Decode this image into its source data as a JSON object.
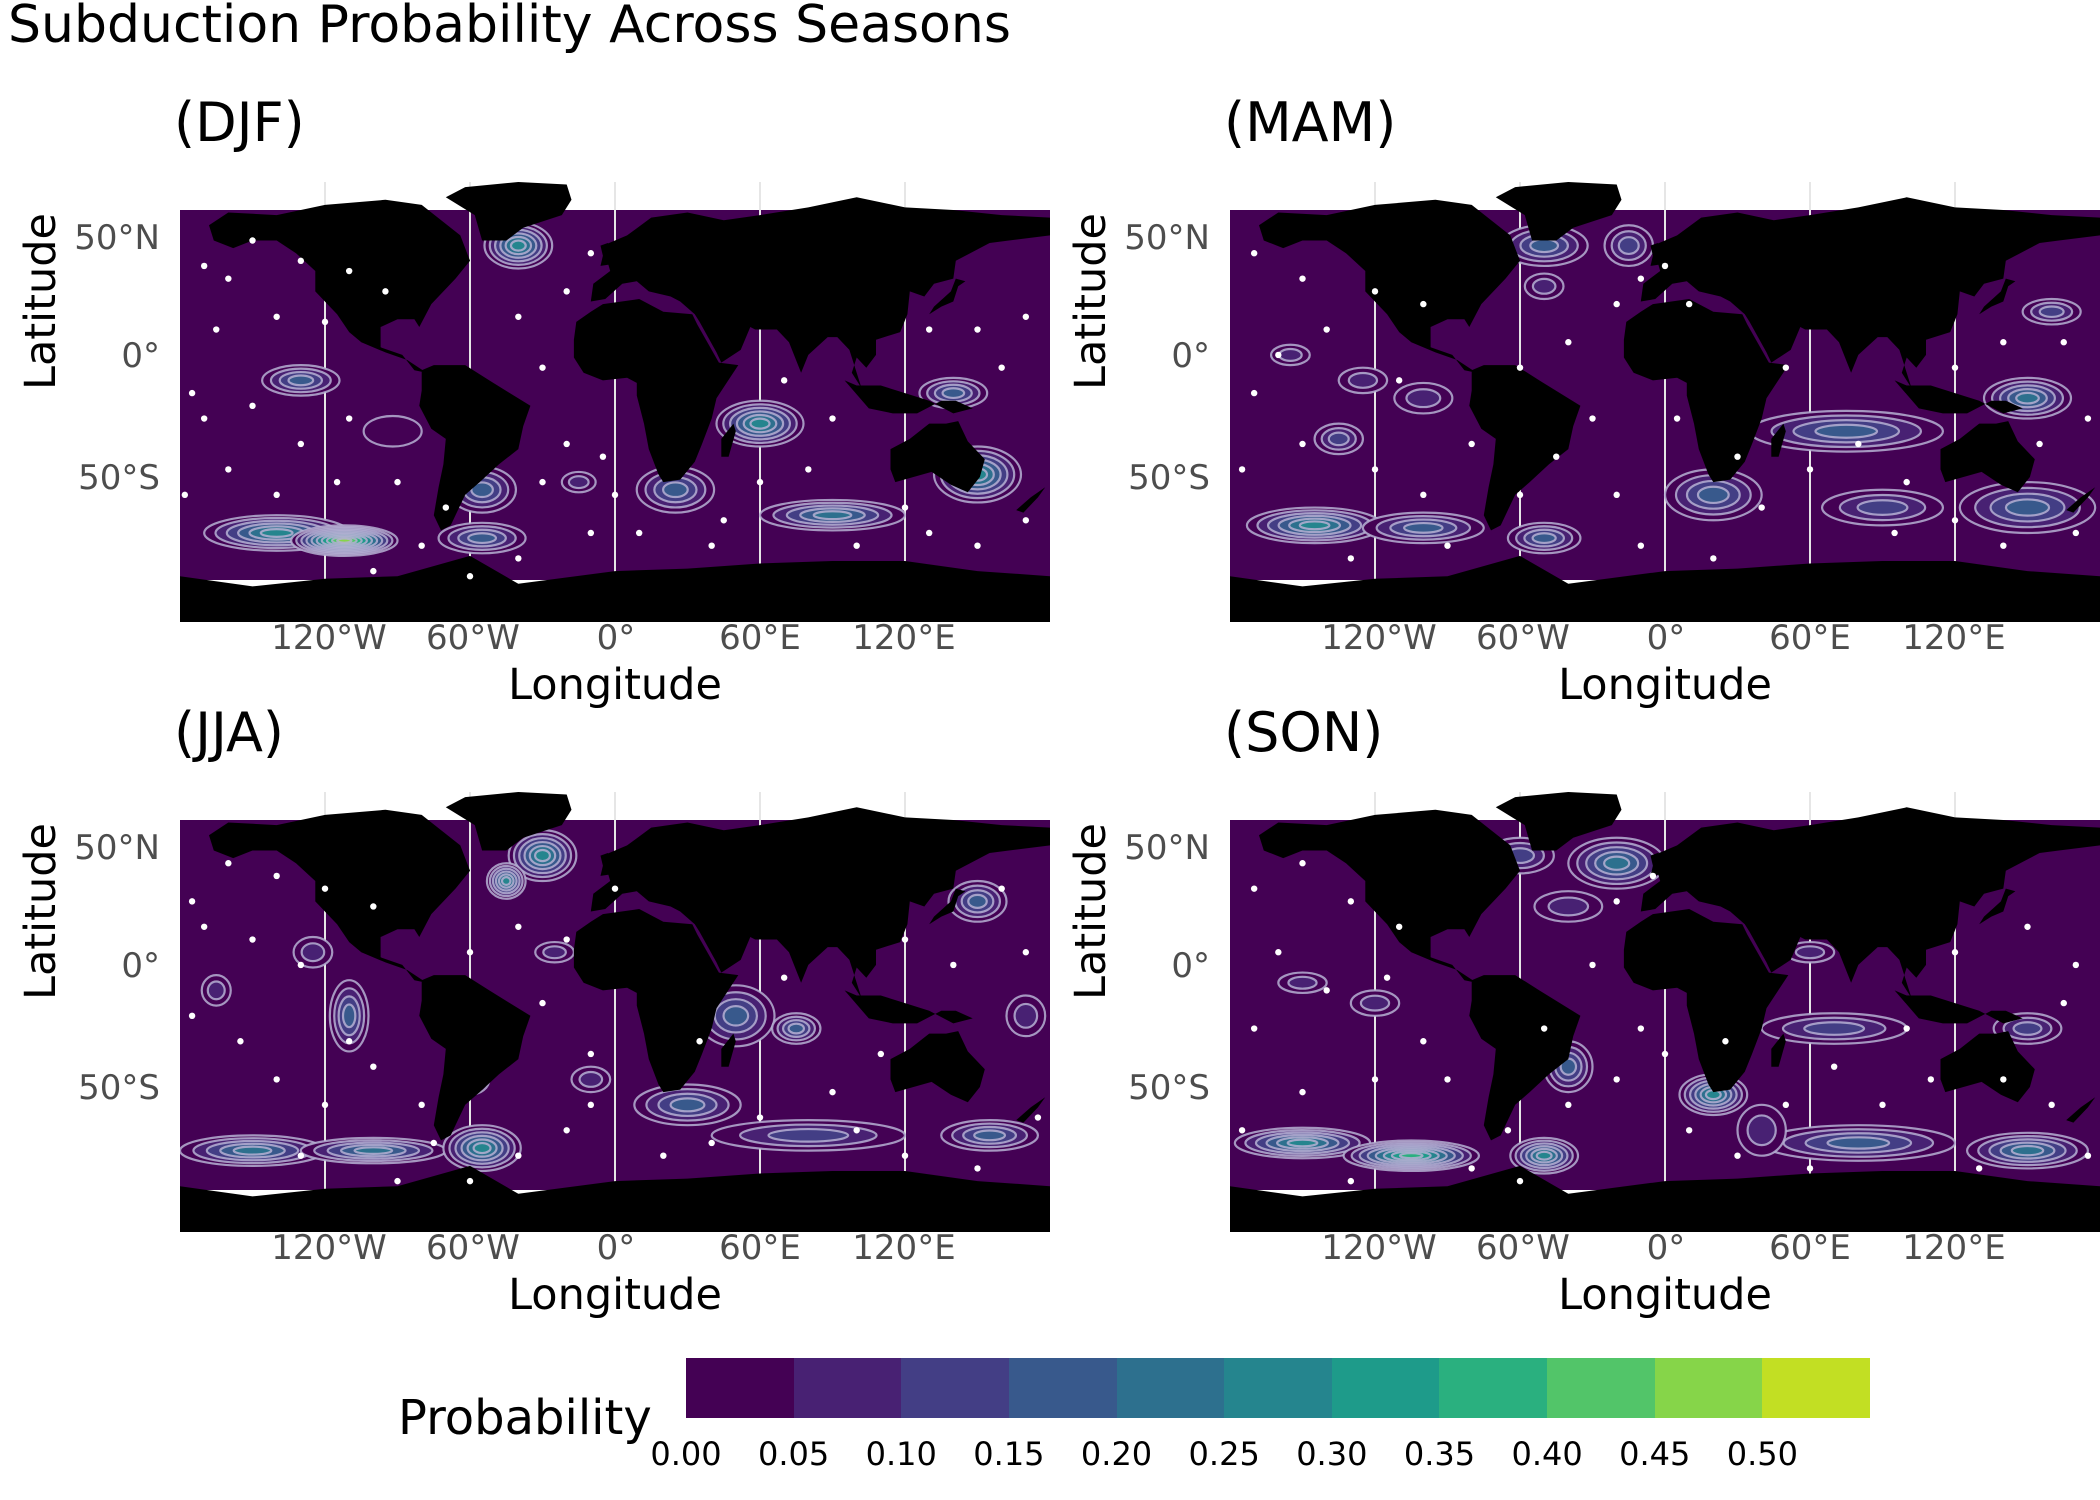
{
  "title": "Subduction Probability Across Seasons",
  "colors": {
    "background": "#440154",
    "land": "#000000",
    "obs_point": "#ffffff",
    "contour_line": "#b6b0d4"
  },
  "axes": {
    "xlabel": "Longitude",
    "ylabel": "Latitude",
    "x_ticks": [
      {
        "lon": -120,
        "label": "120°W"
      },
      {
        "lon": -60,
        "label": "60°W"
      },
      {
        "lon": 0,
        "label": "0°"
      },
      {
        "lon": 60,
        "label": "60°E"
      },
      {
        "lon": 120,
        "label": "120°E"
      }
    ],
    "y_ticks": [
      {
        "lat": 50,
        "label": "50°N"
      },
      {
        "lat": 0,
        "label": "0°"
      },
      {
        "lat": -50,
        "label": "50°S"
      }
    ],
    "xlim": [
      -180,
      180
    ],
    "ylim": [
      -90,
      83
    ]
  },
  "panels": [
    {
      "id": "djf",
      "label": "(DJF)",
      "hotspots": [
        {
          "lon": -40,
          "lat": 58,
          "rx": 14,
          "ry": 9,
          "peak": 0.3
        },
        {
          "lon": -130,
          "lat": 5,
          "rx": 16,
          "ry": 6,
          "peak": 0.18
        },
        {
          "lon": -92,
          "lat": -15,
          "rx": 12,
          "ry": 6,
          "peak": 0.06
        },
        {
          "lon": -55,
          "lat": -38,
          "rx": 14,
          "ry": 9,
          "peak": 0.18
        },
        {
          "lon": 60,
          "lat": -12,
          "rx": 18,
          "ry": 9,
          "peak": 0.3
        },
        {
          "lon": 25,
          "lat": -38,
          "rx": 16,
          "ry": 9,
          "peak": 0.2
        },
        {
          "lon": -15,
          "lat": -35,
          "rx": 7,
          "ry": 4,
          "peak": 0.1
        },
        {
          "lon": -140,
          "lat": -55,
          "rx": 30,
          "ry": 7,
          "peak": 0.3
        },
        {
          "lon": -112,
          "lat": -58,
          "rx": 22,
          "ry": 6,
          "peak": 0.5
        },
        {
          "lon": -55,
          "lat": -57,
          "rx": 18,
          "ry": 6,
          "peak": 0.2
        },
        {
          "lon": 90,
          "lat": -48,
          "rx": 30,
          "ry": 6,
          "peak": 0.26
        },
        {
          "lon": 150,
          "lat": -32,
          "rx": 18,
          "ry": 11,
          "peak": 0.28
        },
        {
          "lon": 140,
          "lat": 0,
          "rx": 14,
          "ry": 6,
          "peak": 0.18
        }
      ],
      "points": [
        [
          -170,
          50
        ],
        [
          -160,
          45
        ],
        [
          -150,
          60
        ],
        [
          -130,
          52
        ],
        [
          -110,
          48
        ],
        [
          -95,
          40
        ],
        [
          -165,
          25
        ],
        [
          -140,
          30
        ],
        [
          -120,
          28
        ],
        [
          -150,
          -5
        ],
        [
          -170,
          -10
        ],
        [
          -130,
          -20
        ],
        [
          -110,
          -10
        ],
        [
          -160,
          -30
        ],
        [
          -140,
          -40
        ],
        [
          -115,
          -35
        ],
        [
          -90,
          -35
        ],
        [
          -100,
          -70
        ],
        [
          -60,
          -72
        ],
        [
          -40,
          -65
        ],
        [
          -10,
          -55
        ],
        [
          0,
          -40
        ],
        [
          -20,
          -20
        ],
        [
          -30,
          10
        ],
        [
          -40,
          30
        ],
        [
          -20,
          40
        ],
        [
          -10,
          55
        ],
        [
          10,
          -55
        ],
        [
          40,
          -60
        ],
        [
          60,
          -35
        ],
        [
          80,
          -30
        ],
        [
          90,
          -10
        ],
        [
          70,
          5
        ],
        [
          100,
          -60
        ],
        [
          130,
          -55
        ],
        [
          150,
          -60
        ],
        [
          170,
          -50
        ],
        [
          160,
          10
        ],
        [
          170,
          30
        ],
        [
          150,
          25
        ],
        [
          130,
          25
        ],
        [
          -175,
          0
        ],
        [
          -178,
          -40
        ],
        [
          45,
          -50
        ],
        [
          120,
          -45
        ],
        [
          -80,
          -60
        ],
        [
          -70,
          -45
        ],
        [
          -30,
          -35
        ],
        [
          -5,
          -25
        ]
      ]
    },
    {
      "id": "mam",
      "label": "(MAM)",
      "hotspots": [
        {
          "lon": -50,
          "lat": 58,
          "rx": 18,
          "ry": 8,
          "peak": 0.22
        },
        {
          "lon": -15,
          "lat": 58,
          "rx": 10,
          "ry": 8,
          "peak": 0.15
        },
        {
          "lon": -50,
          "lat": 42,
          "rx": 8,
          "ry": 5,
          "peak": 0.12
        },
        {
          "lon": -155,
          "lat": 15,
          "rx": 8,
          "ry": 4,
          "peak": 0.1
        },
        {
          "lon": -125,
          "lat": 5,
          "rx": 10,
          "ry": 5,
          "peak": 0.12
        },
        {
          "lon": -135,
          "lat": -18,
          "rx": 10,
          "ry": 6,
          "peak": 0.15
        },
        {
          "lon": -100,
          "lat": -2,
          "rx": 12,
          "ry": 6,
          "peak": 0.1
        },
        {
          "lon": 20,
          "lat": -40,
          "rx": 20,
          "ry": 10,
          "peak": 0.22
        },
        {
          "lon": 75,
          "lat": -15,
          "rx": 40,
          "ry": 8,
          "peak": 0.22
        },
        {
          "lon": 150,
          "lat": -2,
          "rx": 18,
          "ry": 8,
          "peak": 0.25
        },
        {
          "lon": 150,
          "lat": -45,
          "rx": 28,
          "ry": 10,
          "peak": 0.18
        },
        {
          "lon": 90,
          "lat": -45,
          "rx": 25,
          "ry": 7,
          "peak": 0.16
        },
        {
          "lon": 160,
          "lat": 32,
          "rx": 12,
          "ry": 5,
          "peak": 0.15
        },
        {
          "lon": -145,
          "lat": -52,
          "rx": 28,
          "ry": 7,
          "peak": 0.3
        },
        {
          "lon": -100,
          "lat": -53,
          "rx": 25,
          "ry": 6,
          "peak": 0.22
        },
        {
          "lon": -50,
          "lat": -57,
          "rx": 15,
          "ry": 6,
          "peak": 0.2
        },
        {
          "lon": 70,
          "lat": 37,
          "rx": 14,
          "ry": 4,
          "peak": 0.1
        }
      ],
      "points": [
        [
          -170,
          55
        ],
        [
          -150,
          45
        ],
        [
          -120,
          40
        ],
        [
          -100,
          35
        ],
        [
          -140,
          25
        ],
        [
          -160,
          15
        ],
        [
          -170,
          0
        ],
        [
          -150,
          -20
        ],
        [
          -120,
          -30
        ],
        [
          -100,
          -40
        ],
        [
          -80,
          -20
        ],
        [
          -60,
          10
        ],
        [
          -40,
          20
        ],
        [
          -20,
          35
        ],
        [
          -10,
          45
        ],
        [
          0,
          50
        ],
        [
          10,
          35
        ],
        [
          -30,
          -10
        ],
        [
          -20,
          -40
        ],
        [
          -10,
          -60
        ],
        [
          20,
          -65
        ],
        [
          40,
          -45
        ],
        [
          60,
          -30
        ],
        [
          80,
          -20
        ],
        [
          100,
          -35
        ],
        [
          120,
          -50
        ],
        [
          140,
          -60
        ],
        [
          170,
          -55
        ],
        [
          165,
          20
        ],
        [
          140,
          20
        ],
        [
          120,
          10
        ],
        [
          175,
          -10
        ],
        [
          -175,
          -30
        ],
        [
          -130,
          -65
        ],
        [
          -90,
          -60
        ],
        [
          -60,
          -40
        ],
        [
          50,
          10
        ],
        [
          30,
          -25
        ],
        [
          95,
          -55
        ],
        [
          155,
          -20
        ],
        [
          -110,
          5
        ],
        [
          -45,
          -25
        ],
        [
          5,
          -10
        ]
      ]
    },
    {
      "id": "jja",
      "label": "(JJA)",
      "hotspots": [
        {
          "lon": -30,
          "lat": 58,
          "rx": 14,
          "ry": 10,
          "peak": 0.3
        },
        {
          "lon": -45,
          "lat": 48,
          "rx": 8,
          "ry": 7,
          "peak": 0.3
        },
        {
          "lon": 150,
          "lat": 40,
          "rx": 12,
          "ry": 8,
          "peak": 0.22
        },
        {
          "lon": -165,
          "lat": 5,
          "rx": 6,
          "ry": 6,
          "peak": 0.1
        },
        {
          "lon": -110,
          "lat": -5,
          "rx": 8,
          "ry": 14,
          "peak": 0.22
        },
        {
          "lon": -125,
          "lat": 20,
          "rx": 8,
          "ry": 6,
          "peak": 0.1
        },
        {
          "lon": -25,
          "lat": 20,
          "rx": 8,
          "ry": 4,
          "peak": 0.1
        },
        {
          "lon": 50,
          "lat": -5,
          "rx": 16,
          "ry": 12,
          "peak": 0.22
        },
        {
          "lon": 75,
          "lat": -10,
          "rx": 10,
          "ry": 6,
          "peak": 0.22
        },
        {
          "lon": 30,
          "lat": -40,
          "rx": 22,
          "ry": 8,
          "peak": 0.18
        },
        {
          "lon": -10,
          "lat": -30,
          "rx": 8,
          "ry": 5,
          "peak": 0.1
        },
        {
          "lon": -150,
          "lat": -58,
          "rx": 30,
          "ry": 6,
          "peak": 0.26
        },
        {
          "lon": -100,
          "lat": -58,
          "rx": 30,
          "ry": 5,
          "peak": 0.24
        },
        {
          "lon": -55,
          "lat": -57,
          "rx": 16,
          "ry": 9,
          "peak": 0.3
        },
        {
          "lon": 80,
          "lat": -52,
          "rx": 40,
          "ry": 6,
          "peak": 0.15
        },
        {
          "lon": 155,
          "lat": -52,
          "rx": 20,
          "ry": 6,
          "peak": 0.22
        },
        {
          "lon": 170,
          "lat": -5,
          "rx": 8,
          "ry": 8,
          "peak": 0.1
        },
        {
          "lon": -60,
          "lat": -30,
          "rx": 8,
          "ry": 6,
          "peak": 0.14
        }
      ],
      "points": [
        [
          -160,
          55
        ],
        [
          -140,
          50
        ],
        [
          -120,
          45
        ],
        [
          -100,
          38
        ],
        [
          -170,
          30
        ],
        [
          -150,
          25
        ],
        [
          -130,
          15
        ],
        [
          -175,
          -5
        ],
        [
          -155,
          -15
        ],
        [
          -140,
          -30
        ],
        [
          -120,
          -40
        ],
        [
          -100,
          -25
        ],
        [
          -80,
          -40
        ],
        [
          -90,
          -70
        ],
        [
          -60,
          -70
        ],
        [
          -40,
          -60
        ],
        [
          -20,
          -50
        ],
        [
          -10,
          -20
        ],
        [
          -30,
          0
        ],
        [
          -20,
          25
        ],
        [
          -40,
          30
        ],
        [
          0,
          45
        ],
        [
          20,
          -60
        ],
        [
          40,
          -55
        ],
        [
          60,
          -45
        ],
        [
          90,
          -35
        ],
        [
          110,
          -20
        ],
        [
          120,
          -60
        ],
        [
          150,
          -65
        ],
        [
          175,
          -45
        ],
        [
          170,
          20
        ],
        [
          140,
          15
        ],
        [
          120,
          25
        ],
        [
          160,
          45
        ],
        [
          -175,
          40
        ],
        [
          -60,
          20
        ],
        [
          -10,
          -40
        ],
        [
          70,
          10
        ],
        [
          100,
          -50
        ],
        [
          -130,
          -60
        ],
        [
          -75,
          -55
        ],
        [
          -110,
          -15
        ],
        [
          35,
          -15
        ]
      ]
    },
    {
      "id": "son",
      "label": "(SON)",
      "hotspots": [
        {
          "lon": -20,
          "lat": 55,
          "rx": 20,
          "ry": 10,
          "peak": 0.25
        },
        {
          "lon": -60,
          "lat": 58,
          "rx": 14,
          "ry": 7,
          "peak": 0.15
        },
        {
          "lon": -40,
          "lat": 38,
          "rx": 14,
          "ry": 6,
          "peak": 0.1
        },
        {
          "lon": -120,
          "lat": 0,
          "rx": 10,
          "ry": 5,
          "peak": 0.1
        },
        {
          "lon": -150,
          "lat": 8,
          "rx": 10,
          "ry": 4,
          "peak": 0.1
        },
        {
          "lon": -40,
          "lat": -25,
          "rx": 10,
          "ry": 10,
          "peak": 0.22
        },
        {
          "lon": 20,
          "lat": -36,
          "rx": 14,
          "ry": 8,
          "peak": 0.3
        },
        {
          "lon": 70,
          "lat": -10,
          "rx": 30,
          "ry": 6,
          "peak": 0.15
        },
        {
          "lon": 150,
          "lat": -10,
          "rx": 14,
          "ry": 6,
          "peak": 0.15
        },
        {
          "lon": -150,
          "lat": -55,
          "rx": 28,
          "ry": 6,
          "peak": 0.3
        },
        {
          "lon": -105,
          "lat": -60,
          "rx": 28,
          "ry": 6,
          "peak": 0.42
        },
        {
          "lon": -50,
          "lat": -60,
          "rx": 14,
          "ry": 7,
          "peak": 0.3
        },
        {
          "lon": 80,
          "lat": -55,
          "rx": 40,
          "ry": 7,
          "peak": 0.18
        },
        {
          "lon": 150,
          "lat": -58,
          "rx": 25,
          "ry": 7,
          "peak": 0.26
        },
        {
          "lon": 60,
          "lat": 20,
          "rx": 10,
          "ry": 4,
          "peak": 0.08
        },
        {
          "lon": 40,
          "lat": -50,
          "rx": 10,
          "ry": 10,
          "peak": 0.1
        }
      ],
      "points": [
        [
          -170,
          45
        ],
        [
          -150,
          55
        ],
        [
          -130,
          40
        ],
        [
          -110,
          30
        ],
        [
          -160,
          20
        ],
        [
          -140,
          5
        ],
        [
          -170,
          -10
        ],
        [
          -150,
          -35
        ],
        [
          -120,
          -30
        ],
        [
          -100,
          -15
        ],
        [
          -80,
          -65
        ],
        [
          -60,
          -70
        ],
        [
          -40,
          -40
        ],
        [
          -20,
          -30
        ],
        [
          -10,
          -10
        ],
        [
          -30,
          15
        ],
        [
          -20,
          40
        ],
        [
          -5,
          50
        ],
        [
          10,
          -50
        ],
        [
          30,
          -60
        ],
        [
          50,
          -40
        ],
        [
          70,
          -25
        ],
        [
          90,
          -40
        ],
        [
          110,
          -30
        ],
        [
          130,
          -65
        ],
        [
          160,
          -40
        ],
        [
          175,
          -60
        ],
        [
          170,
          15
        ],
        [
          150,
          30
        ],
        [
          120,
          20
        ],
        [
          -175,
          -50
        ],
        [
          -130,
          -70
        ],
        [
          -90,
          -30
        ],
        [
          -50,
          -10
        ],
        [
          0,
          -20
        ],
        [
          60,
          -65
        ],
        [
          100,
          -10
        ],
        [
          140,
          -30
        ],
        [
          -65,
          -50
        ],
        [
          25,
          -15
        ],
        [
          -115,
          10
        ],
        [
          165,
          0
        ]
      ]
    }
  ],
  "legend": {
    "title": "Probability",
    "bins": [
      "#440154",
      "#482173",
      "#433e85",
      "#38598c",
      "#2d708e",
      "#25858e",
      "#1e9b8a",
      "#2ab07f",
      "#52c569",
      "#86d549",
      "#c2df23",
      "#fde725"
    ],
    "tick_labels": [
      "0.00",
      "0.05",
      "0.10",
      "0.15",
      "0.20",
      "0.25",
      "0.30",
      "0.35",
      "0.40",
      "0.45",
      "0.50"
    ]
  }
}
